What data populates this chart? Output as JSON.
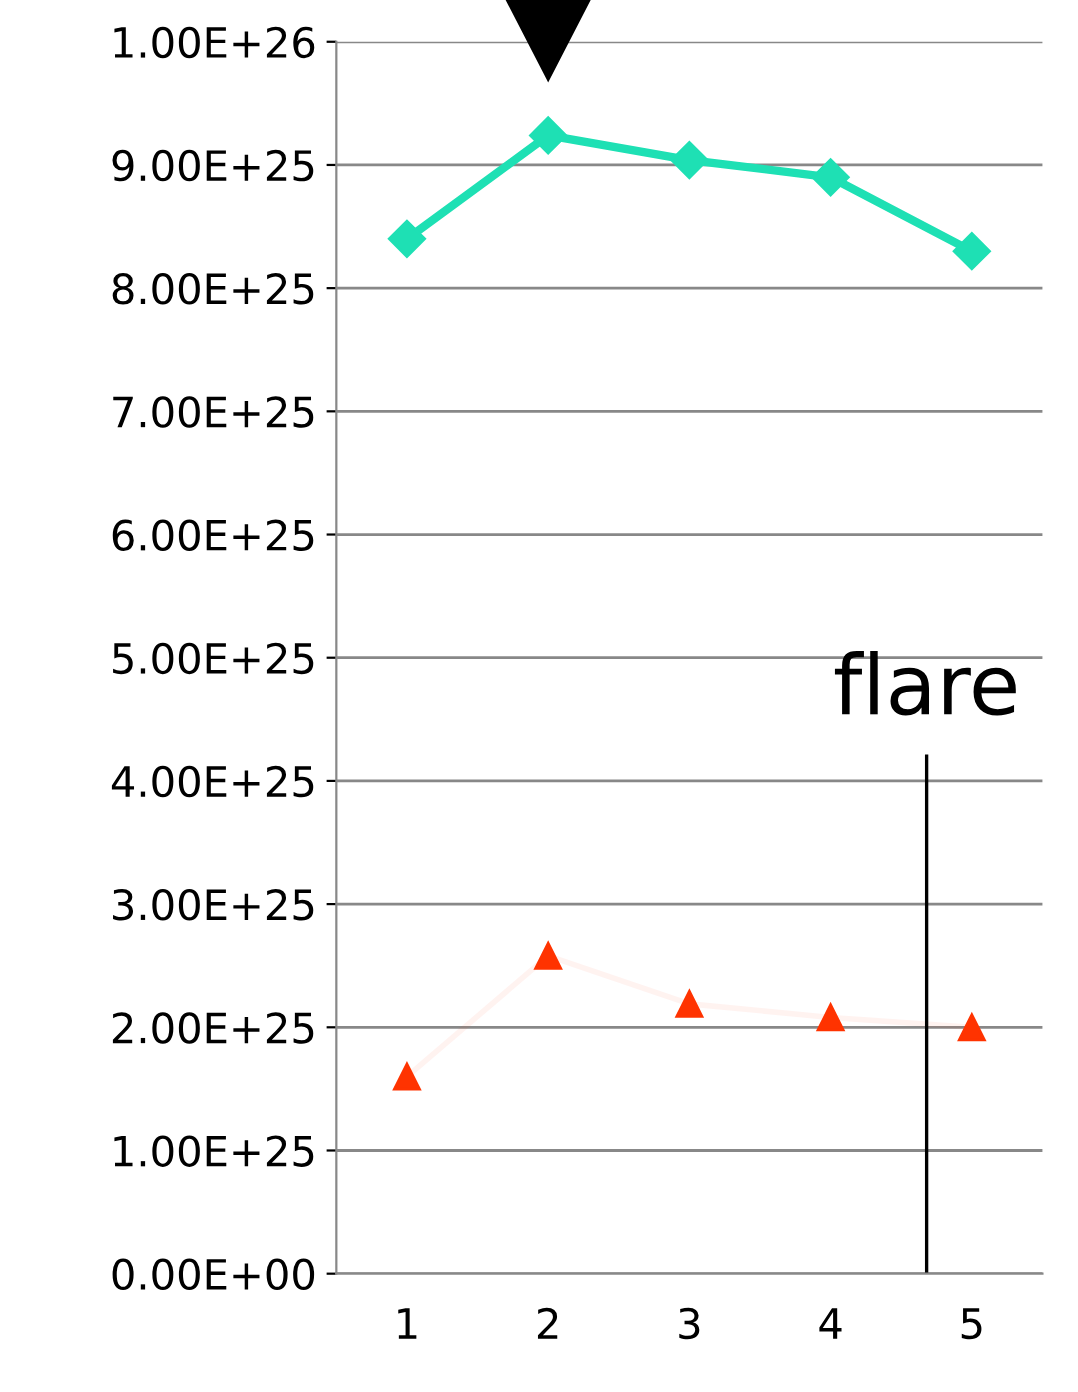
{
  "chart_data": {
    "type": "line",
    "x": [
      1,
      2,
      3,
      4,
      5
    ],
    "series": [
      {
        "color": "#1ee0b4",
        "marker": "diamond",
        "values": [
          8.4e+25,
          9.24e+25,
          9.04e+25,
          8.9e+25,
          8.3e+25
        ]
      },
      {
        "color": "#ff3300",
        "marker": "triangle",
        "values": [
          1.6e+25,
          2.58e+25,
          2.19e+25,
          2.08e+25,
          2e+25
        ]
      }
    ],
    "xlim": [
      0.5,
      5.5
    ],
    "xticks": [
      1,
      2,
      3,
      4,
      5
    ],
    "ylim": [
      0,
      1e+26
    ],
    "yticks": [
      {
        "value": 0,
        "label": "0.00E+00"
      },
      {
        "value": 1e+25,
        "label": "1.00E+25"
      },
      {
        "value": 2e+25,
        "label": "2.00E+25"
      },
      {
        "value": 3e+25,
        "label": "3.00E+25"
      },
      {
        "value": 4e+25,
        "label": "4.00E+25"
      },
      {
        "value": 5e+25,
        "label": "5.00E+25"
      },
      {
        "value": 6e+25,
        "label": "6.00E+25"
      },
      {
        "value": 7e+25,
        "label": "7.00E+25"
      },
      {
        "value": 8e+25,
        "label": "8.00E+25"
      },
      {
        "value": 9e+25,
        "label": "9.00E+25"
      },
      {
        "value": 1e+26,
        "label": "1.00E+26"
      }
    ],
    "grid": "y",
    "ref_lines": [
      {
        "axis": "x",
        "value": 4.68,
        "label": "flare",
        "color": "#000000"
      }
    ]
  }
}
